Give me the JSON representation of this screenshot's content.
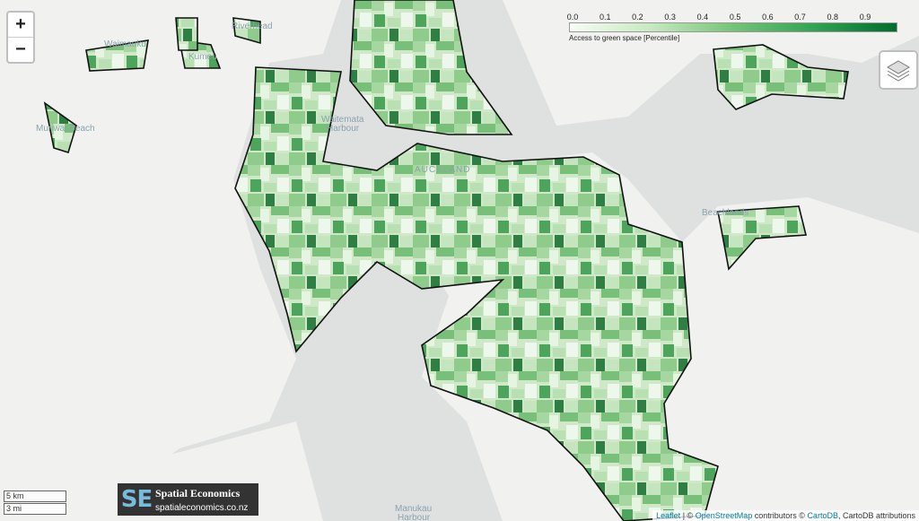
{
  "map": {
    "zoom_in": "+",
    "zoom_out": "−"
  },
  "places": [
    {
      "label": "Riverhead"
    },
    {
      "label": "Waimauku"
    },
    {
      "label": "Kumeu"
    },
    {
      "label": "Muriwai Beach"
    },
    {
      "label": "Waitemata"
    },
    {
      "label": "Harbour"
    },
    {
      "label": "AUCKLAND"
    },
    {
      "label": "Beachlands"
    },
    {
      "label": "Manukau"
    },
    {
      "label": "Harbour"
    }
  ],
  "legend": {
    "ticks": [
      "0.0",
      "0.1",
      "0.2",
      "0.3",
      "0.4",
      "0.5",
      "0.6",
      "0.7",
      "0.8",
      "0.9"
    ],
    "title": "Access to green space [Percentile]"
  },
  "scale": {
    "metric": "5 km",
    "imperial": "3 mi"
  },
  "logo": {
    "mark": "SE",
    "name": "Spatial Economics",
    "url": "spatialeconomics.co.nz"
  },
  "attribution": {
    "leaflet": "Leaflet",
    "sep1": "| ©",
    "osm": "OpenStreetMap",
    "sep2": "contributors ©",
    "cartodb": "CartoDB",
    "rest": ", CartoDB attributions"
  }
}
